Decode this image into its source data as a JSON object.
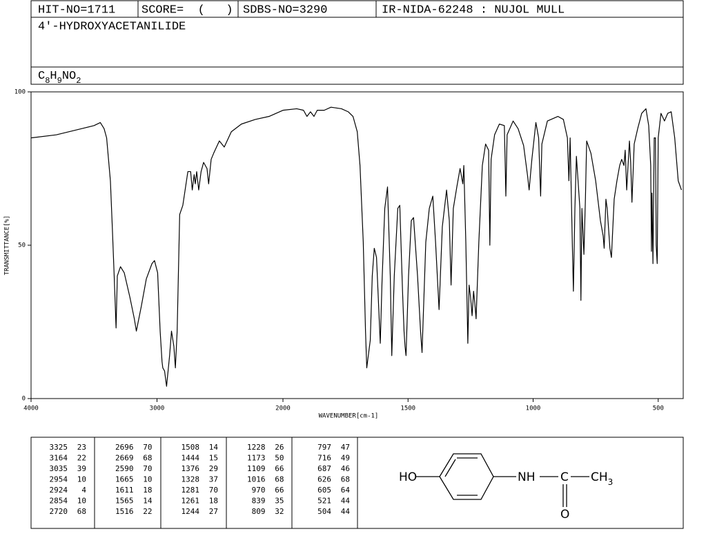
{
  "header": {
    "hit_no": "HIT-NO=1711",
    "score": "SCORE=  (   )",
    "sdbs_no": "SDBS-NO=3290",
    "ir": "IR-NIDA-62248 : NUJOL MULL",
    "name": "4'-HYDROXYACETANILIDE",
    "formula": [
      "C",
      "8",
      "H",
      "9",
      "NO",
      "2"
    ]
  },
  "chart_data": {
    "type": "line",
    "color": "#000000",
    "y_label": "TRANSMITTANCE[%]",
    "x_label": "WAVENUMBER[cm-1]",
    "xlim": [
      4000,
      400
    ],
    "x_scale_break": 2000,
    "xticks": [
      4000,
      3000,
      2000,
      1500,
      1000,
      500
    ],
    "ylim": [
      0,
      100
    ],
    "yticks": [
      0,
      50,
      100
    ],
    "x": [
      4000,
      3800,
      3600,
      3500,
      3450,
      3420,
      3400,
      3370,
      3355,
      3340,
      3325,
      3315,
      3290,
      3260,
      3215,
      3180,
      3164,
      3125,
      3085,
      3040,
      3020,
      2995,
      2975,
      2960,
      2954,
      2940,
      2924,
      2900,
      2885,
      2866,
      2854,
      2840,
      2820,
      2795,
      2755,
      2733,
      2720,
      2705,
      2696,
      2685,
      2669,
      2650,
      2630,
      2603,
      2590,
      2570,
      2550,
      2505,
      2466,
      2410,
      2330,
      2220,
      2110,
      2000,
      1945,
      1918,
      1904,
      1890,
      1876,
      1863,
      1835,
      1808,
      1766,
      1739,
      1720,
      1703,
      1692,
      1679,
      1670,
      1665,
      1651,
      1643,
      1635,
      1626,
      1611,
      1604,
      1593,
      1582,
      1571,
      1565,
      1555,
      1541,
      1533,
      1522,
      1516,
      1512,
      1508,
      1498,
      1487,
      1478,
      1462,
      1450,
      1444,
      1429,
      1415,
      1401,
      1390,
      1376,
      1363,
      1346,
      1335,
      1328,
      1319,
      1305,
      1292,
      1281,
      1277,
      1269,
      1261,
      1256,
      1250,
      1244,
      1238,
      1233,
      1228,
      1217,
      1203,
      1190,
      1178,
      1173,
      1168,
      1154,
      1135,
      1115,
      1109,
      1104,
      1080,
      1060,
      1038,
      1022,
      1016,
      1005,
      989,
      978,
      970,
      965,
      943,
      901,
      879,
      863,
      857,
      852,
      844,
      839,
      833,
      827,
      813,
      809,
      805,
      797,
      791,
      786,
      769,
      750,
      731,
      720,
      716,
      709,
      704,
      693,
      687,
      676,
      665,
      654,
      646,
      637,
      632,
      626,
      615,
      610,
      605,
      596,
      582,
      566,
      549,
      538,
      530,
      527,
      525,
      521,
      516,
      511,
      508,
      504,
      500,
      489,
      475,
      462,
      448,
      434,
      420,
      407
    ],
    "values": [
      85,
      86,
      88,
      89,
      90,
      88,
      85,
      71,
      56,
      40,
      23,
      40,
      43,
      41,
      33,
      26,
      22,
      30,
      39,
      44,
      45,
      41,
      22,
      12,
      10,
      9,
      4,
      14,
      22,
      17,
      10,
      22,
      60,
      63,
      74,
      74,
      68,
      73,
      70,
      74,
      68,
      74,
      77,
      75,
      70,
      78,
      80,
      84,
      82,
      87,
      89.5,
      91,
      92,
      94,
      94.5,
      94,
      92,
      93.5,
      92,
      94,
      94,
      95,
      94.5,
      93.5,
      92,
      87,
      76,
      51,
      22,
      10,
      19,
      40,
      49,
      46,
      18,
      38,
      62,
      69,
      40,
      14,
      40,
      62,
      63,
      35,
      22,
      17,
      14,
      40,
      58,
      59,
      40,
      22,
      15,
      51,
      62,
      66,
      51,
      29,
      56,
      68,
      58,
      37,
      62,
      69,
      75,
      70,
      76,
      51,
      18,
      37,
      33,
      27,
      35,
      31,
      26,
      51,
      76,
      83,
      81,
      50,
      78,
      86,
      89.5,
      89,
      66,
      86,
      90.5,
      88,
      82.5,
      72.5,
      68,
      78,
      90,
      85,
      66,
      83,
      90.5,
      92,
      91,
      85,
      71,
      85,
      53,
      35,
      62,
      79,
      62,
      32,
      62,
      47,
      65,
      84,
      80,
      71,
      58,
      53,
      49,
      65,
      62,
      49,
      46,
      65,
      71,
      76,
      78,
      76,
      81,
      68,
      84,
      77,
      64,
      83,
      88,
      93,
      94.5,
      89,
      76,
      48,
      67,
      44,
      85,
      85,
      50,
      44,
      85,
      93,
      90.5,
      93,
      93.5,
      85,
      71,
      68
    ]
  },
  "peak_table": [
    [
      3325,
      23
    ],
    [
      3164,
      22
    ],
    [
      3035,
      39
    ],
    [
      2954,
      10
    ],
    [
      2924,
      4
    ],
    [
      2854,
      10
    ],
    [
      2720,
      68
    ],
    [
      2696,
      70
    ],
    [
      2669,
      68
    ],
    [
      2590,
      70
    ],
    [
      1665,
      10
    ],
    [
      1611,
      18
    ],
    [
      1565,
      14
    ],
    [
      1516,
      22
    ],
    [
      1508,
      14
    ],
    [
      1444,
      15
    ],
    [
      1376,
      29
    ],
    [
      1328,
      37
    ],
    [
      1281,
      70
    ],
    [
      1261,
      18
    ],
    [
      1244,
      27
    ],
    [
      1228,
      26
    ],
    [
      1173,
      50
    ],
    [
      1109,
      66
    ],
    [
      1016,
      68
    ],
    [
      970,
      66
    ],
    [
      839,
      35
    ],
    [
      809,
      32
    ],
    [
      797,
      47
    ],
    [
      716,
      49
    ],
    [
      687,
      46
    ],
    [
      626,
      68
    ],
    [
      605,
      64
    ],
    [
      521,
      44
    ],
    [
      504,
      44
    ]
  ],
  "structure": {
    "ho": "HO",
    "nh": "NH",
    "c": "C",
    "ch": "CH",
    "sub3": "3",
    "o": "O"
  }
}
